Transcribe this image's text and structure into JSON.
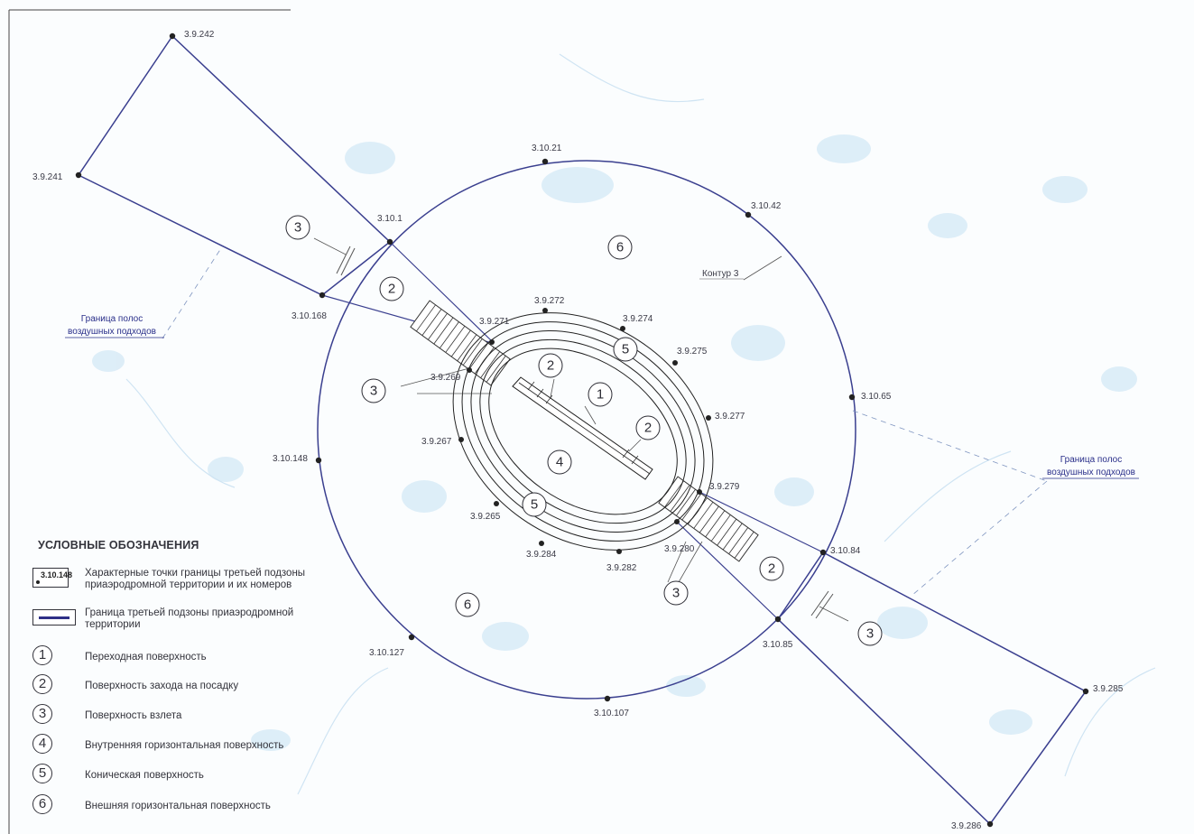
{
  "points": {
    "p_3_9_242": "3.9.242",
    "p_3_9_241": "3.9.241",
    "p_3_10_1": "3.10.1",
    "p_3_10_21": "3.10.21",
    "p_3_10_42": "3.10.42",
    "p_3_10_168": "3.10.168",
    "p_3_9_272": "3.9.272",
    "p_3_9_274": "3.9.274",
    "p_3_9_271": "3.9.271",
    "p_3_9_275": "3.9.275",
    "p_3_9_269": "3.9.269",
    "p_3_10_65": "3.10.65",
    "p_3_9_277": "3.9.277",
    "p_3_9_267": "3.9.267",
    "p_3_10_148": "3.10.148",
    "p_3_9_279": "3.9.279",
    "p_3_9_265": "3.9.265",
    "p_3_9_284": "3.9.284",
    "p_3_9_282": "3.9.282",
    "p_3_9_280": "3.9.280",
    "p_3_10_84": "3.10.84",
    "p_3_10_127": "3.10.127",
    "p_3_10_85": "3.10.85",
    "p_3_10_107": "3.10.107",
    "p_3_9_285": "3.9.285",
    "p_3_9_286": "3.9.286"
  },
  "annotations": {
    "contour": "Контур 3",
    "approach_left_1": "Граница полос",
    "approach_left_2": "воздушных подходов",
    "approach_right_1": "Граница полос",
    "approach_right_2": "воздушных подходов"
  },
  "zones": {
    "z1": "1",
    "z2": "2",
    "z3": "3",
    "z4": "4",
    "z5": "5",
    "z6": "6"
  },
  "legend": {
    "title": "УСЛОВНЫЕ ОБОЗНАЧЕНИЯ",
    "point_sample": "3.10.148",
    "point_desc": "Характерные точки границы третьей подзоны приаэродромной территории и их номеров",
    "line_desc": "Граница третьей подзоны приаэродромной территории",
    "items": [
      {
        "num": "1",
        "label": "Переходная поверхность"
      },
      {
        "num": "2",
        "label": "Поверхность захода на посадку"
      },
      {
        "num": "3",
        "label": "Поверхность взлета"
      },
      {
        "num": "4",
        "label": "Внутренняя горизонтальная поверхность"
      },
      {
        "num": "5",
        "label": "Коническая поверхность"
      },
      {
        "num": "6",
        "label": "Внешняя горизонтальная поверхность"
      }
    ]
  },
  "colors": {
    "boundary": "#3a3f8f",
    "water": "#cfe6f4",
    "text": "#33333b"
  }
}
